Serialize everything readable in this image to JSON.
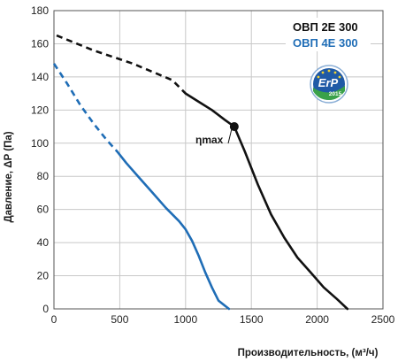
{
  "chart_data": {
    "type": "line",
    "xlabel": "Производительность, (м³/ч)",
    "ylabel": "Давление, ΔP (Па)",
    "xlim": [
      0,
      2500
    ],
    "ylim": [
      0,
      180
    ],
    "xticks": [
      0,
      500,
      1000,
      1500,
      2000,
      2500
    ],
    "yticks": [
      0,
      20,
      40,
      60,
      80,
      100,
      120,
      140,
      160,
      180
    ],
    "grid": true,
    "legend_position": "top-right",
    "series": [
      {
        "name": "ОВП 2Е 300",
        "color": "#111111",
        "dashed_part": [
          [
            20,
            165
          ],
          [
            300,
            156
          ],
          [
            600,
            148
          ],
          [
            900,
            138
          ],
          [
            1000,
            130
          ]
        ],
        "solid_part": [
          [
            1000,
            130
          ],
          [
            1100,
            125
          ],
          [
            1200,
            120
          ],
          [
            1300,
            114
          ],
          [
            1370,
            110
          ],
          [
            1450,
            95
          ],
          [
            1550,
            75
          ],
          [
            1650,
            57
          ],
          [
            1750,
            43
          ],
          [
            1850,
            31
          ],
          [
            1950,
            22
          ],
          [
            2050,
            13
          ],
          [
            2150,
            6
          ],
          [
            2230,
            0
          ]
        ]
      },
      {
        "name": "ОВП 4Е 300",
        "color": "#1f6db6",
        "dashed_part": [
          [
            0,
            148
          ],
          [
            100,
            136
          ],
          [
            200,
            123
          ],
          [
            300,
            112
          ],
          [
            400,
            102
          ],
          [
            480,
            95
          ]
        ],
        "solid_part": [
          [
            480,
            95
          ],
          [
            550,
            88
          ],
          [
            650,
            79
          ],
          [
            750,
            70
          ],
          [
            850,
            61
          ],
          [
            950,
            53
          ],
          [
            1000,
            48
          ],
          [
            1050,
            41
          ],
          [
            1100,
            32
          ],
          [
            1150,
            22
          ],
          [
            1200,
            13
          ],
          [
            1250,
            5
          ],
          [
            1330,
            0
          ]
        ]
      }
    ],
    "annotations": [
      {
        "text": "ηmax",
        "x": 1370,
        "y": 110,
        "series": "ОВП 2Е 300"
      }
    ],
    "badge": {
      "line1": "ErP",
      "line2": "2015"
    }
  }
}
